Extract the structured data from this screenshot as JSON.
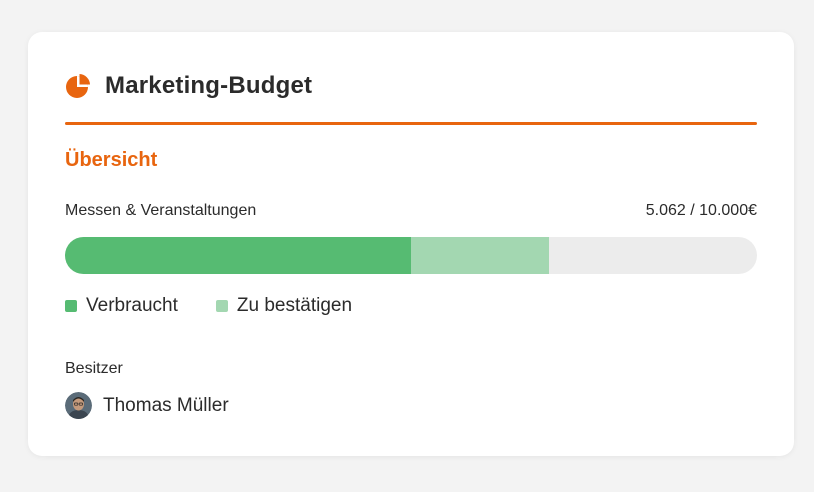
{
  "card": {
    "title": "Marketing-Budget",
    "title_icon": "pie-chart-icon",
    "accent_color": "#e8650f"
  },
  "overview": {
    "section_title": "Übersicht",
    "category_label": "Messen & Veranstaltungen",
    "amount_text": "5.062 / 10.000€",
    "budget_total": 10000,
    "spent_fraction": 0.5,
    "pending_fraction": 0.2,
    "colors": {
      "spent": "#56bb72",
      "pending": "#a3d7b1",
      "track": "#ececec"
    },
    "legend": [
      {
        "label": "Verbraucht",
        "color": "#56bb72"
      },
      {
        "label": "Zu bestätigen",
        "color": "#a3d7b1"
      }
    ]
  },
  "owner": {
    "label": "Besitzer",
    "name": "Thomas Müller"
  }
}
